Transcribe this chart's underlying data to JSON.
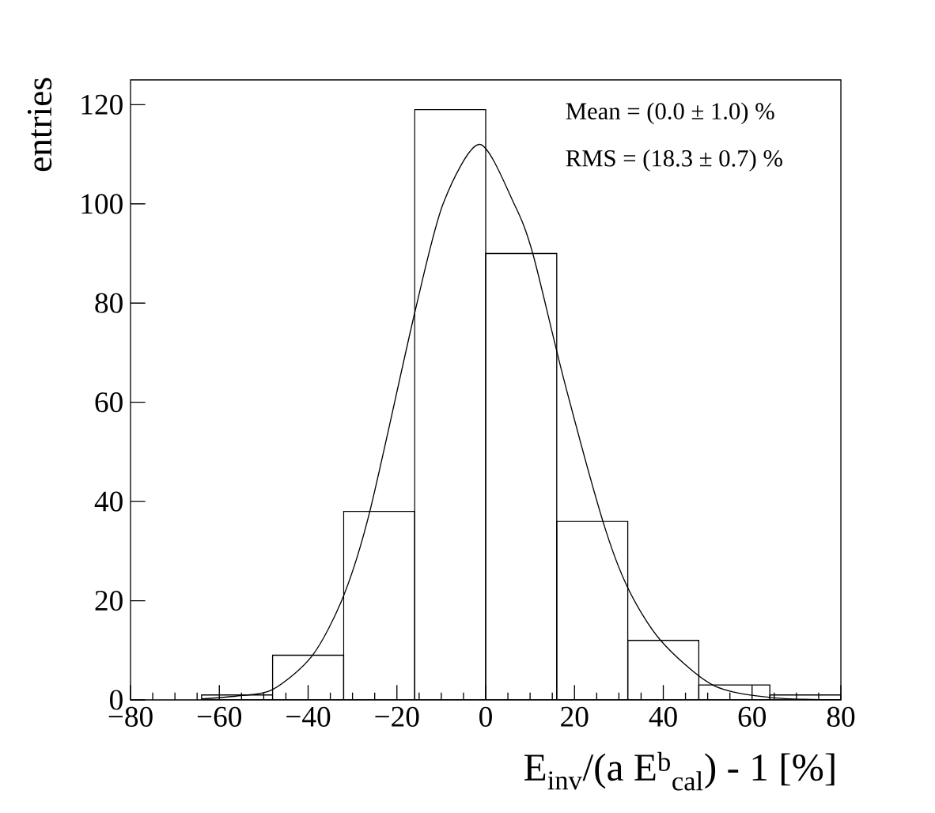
{
  "chart_data": {
    "type": "histogram",
    "xlabel": "E$_{inv}$/(a E$^{b}$$_{cal}$) - 1 [%]",
    "ylabel": "entries",
    "annotations": [
      "Mean = (0.0 ± 1.0) %",
      "RMS = (18.3 ± 0.7) %"
    ],
    "color": "#000000",
    "bins": [
      -64,
      -48,
      -32,
      -16,
      0,
      16,
      32,
      48,
      64,
      80
    ],
    "values": [
      1,
      9,
      38,
      119,
      90,
      36,
      12,
      3,
      1
    ],
    "series": [
      {
        "type": "line",
        "color": "#000000",
        "x": [
          -64,
          -56,
          -48,
          -39,
          -32,
          -26.1,
          -16,
          -9.6,
          -1.4,
          6.4,
          10.6,
          17.6,
          26.4,
          32,
          39.4,
          51.1,
          64,
          80
        ],
        "values": [
          0.2,
          0.8,
          2.1,
          9,
          21,
          38,
          78,
          100,
          112,
          100,
          90,
          64.6,
          36,
          22.6,
          12,
          3,
          0.5,
          0
        ]
      }
    ],
    "xlim": [
      -80,
      80
    ],
    "ylim": [
      0,
      125
    ],
    "xticks": [
      {
        "value": -80,
        "label": "−80"
      },
      {
        "value": -60,
        "label": "−60"
      },
      {
        "value": -40,
        "label": "−40"
      },
      {
        "value": -20,
        "label": "−20"
      },
      0,
      20,
      40,
      60,
      80
    ],
    "yticks": [
      0,
      20,
      40,
      60,
      80,
      100,
      120
    ],
    "grid": false
  }
}
